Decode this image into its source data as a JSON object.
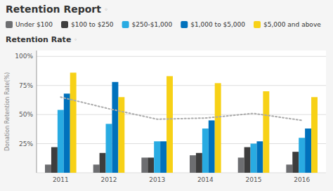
{
  "chart_data": {
    "type": "bar",
    "title": "Retention Report",
    "subtitle": "Retention Rate",
    "annotations": [
      "◦",
      "◦"
    ],
    "ylabel": "Donation Retention Rate(%)",
    "categories": [
      "2011",
      "2012",
      "2013",
      "2014",
      "2015",
      "2016"
    ],
    "series": [
      {
        "name": "Under $100",
        "color": "#6d6e71",
        "values": [
          7,
          7,
          13,
          15,
          13,
          7
        ]
      },
      {
        "name": "$100 to $250",
        "color": "#3d3d3d",
        "values": [
          22,
          17,
          13,
          17,
          22,
          18
        ]
      },
      {
        "name": "$250-$1,000",
        "color": "#29abe2",
        "values": [
          54,
          42,
          27,
          38,
          25,
          30
        ]
      },
      {
        "name": "$1,000 to $5,000",
        "color": "#0071bc",
        "values": [
          68,
          78,
          27,
          45,
          27,
          38
        ]
      },
      {
        "name": "$5,000 and above",
        "color": "#f7d117",
        "values": [
          86,
          65,
          83,
          77,
          70,
          65
        ]
      },
      {
        "type": "line",
        "line_style": "dotted",
        "color": "#aaaaaa",
        "values": [
          65,
          55,
          46,
          47,
          51,
          45
        ]
      }
    ],
    "ylim": [
      0,
      105
    ],
    "yticks": [
      {
        "value": 0,
        "label": null
      },
      {
        "value": 25,
        "label": "25%"
      },
      {
        "value": 50,
        "label": "50%"
      },
      {
        "value": 75,
        "label": "75%"
      },
      {
        "value": 100,
        "label": "100%"
      }
    ],
    "grid": true,
    "legend": "top"
  }
}
